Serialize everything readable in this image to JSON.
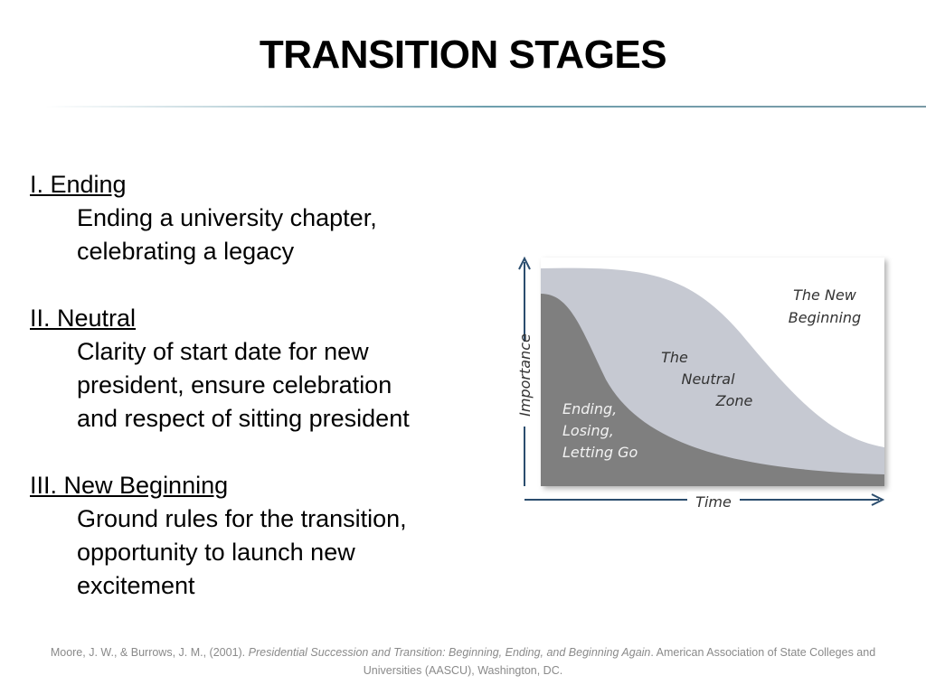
{
  "title": "TRANSITION STAGES",
  "sections": [
    {
      "heading": "I. Ending",
      "lines": [
        "Ending a university chapter,",
        "celebrating a legacy"
      ]
    },
    {
      "heading": "II. Neutral",
      "lines": [
        "Clarity of start date for new",
        "president, ensure celebration",
        "and respect of sitting president"
      ]
    },
    {
      "heading": "III. New Beginning",
      "lines": [
        "Ground rules for the transition,",
        "opportunity to launch new",
        "excitement"
      ]
    }
  ],
  "diagram": {
    "y_axis": "Importance",
    "x_axis": "Time",
    "new_beginning": [
      "The New",
      "Beginning"
    ],
    "neutral_zone": [
      "The",
      "Neutral",
      "Zone"
    ],
    "ending": [
      "Ending,",
      "Losing,",
      "Letting Go"
    ]
  },
  "citation": {
    "authors": "Moore, J. W., & Burrows, J. M., (2001). ",
    "work": "Presidential Succession and Transition: Beginning, Ending, and Beginning Again",
    "publisher": ". American Association of State Colleges and Universities (AASCU), Washington, DC."
  }
}
